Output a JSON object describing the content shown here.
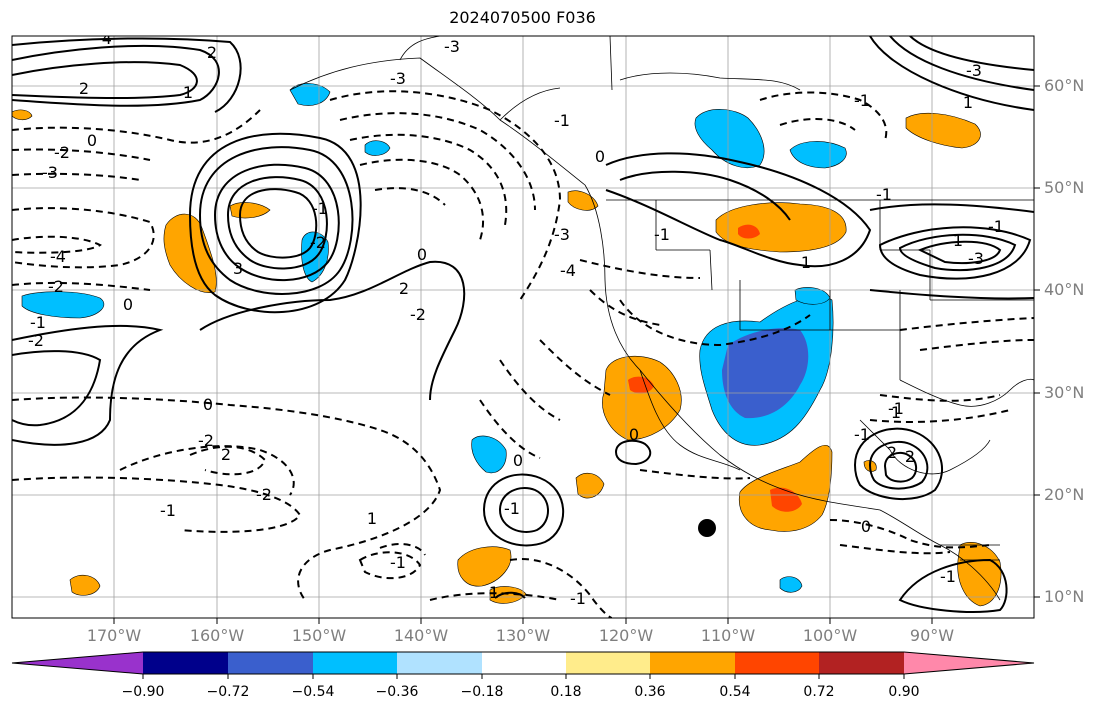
{
  "title": "2024070500 F036",
  "lat_labels": [
    "60°N",
    "50°N",
    "40°N",
    "30°N",
    "20°N",
    "10°N"
  ],
  "lon_labels": [
    "170°W",
    "160°W",
    "150°W",
    "140°W",
    "130°W",
    "120°W",
    "110°W",
    "100°W",
    "90°W"
  ],
  "colorbar": {
    "ticks": [
      "−0.90",
      "−0.72",
      "−0.54",
      "−0.36",
      "−0.18",
      "0.18",
      "0.36",
      "0.54",
      "0.72",
      "0.90"
    ],
    "colors": [
      "#9932cc",
      "#00008b",
      "#3a5fcd",
      "#00bfff",
      "#b0e2ff",
      "#ffffff",
      "#ffec8b",
      "#ffa500",
      "#ff4500",
      "#b22222",
      "#ff88aa"
    ]
  },
  "colors": {
    "neg_strong": "#3a5fcd",
    "neg_mid": "#00bfff",
    "pos_mid": "#ffa500",
    "pos_strong": "#ff4500",
    "gridline": "#a0a0a0",
    "axis_label": "#7f7f7f"
  },
  "contour_labels": [
    "-4",
    "2",
    "-3",
    "0",
    "-1",
    "-2",
    "2",
    "-4",
    "-3",
    "-3",
    "-1",
    "0",
    "-2",
    "-1",
    "1",
    "-3",
    "3",
    "0",
    "2",
    "-4",
    "-2",
    "-2",
    "-1",
    "0",
    "-1",
    "-1",
    "2",
    "-2",
    "-1",
    "0",
    "-2",
    "-1",
    "1",
    "-2",
    "-1",
    "2",
    "2",
    "0",
    "1",
    "-1",
    "0",
    "-1",
    "1",
    "1",
    "0",
    "-1",
    "-3",
    "1",
    "-1",
    "-1",
    "1",
    "-3"
  ]
}
